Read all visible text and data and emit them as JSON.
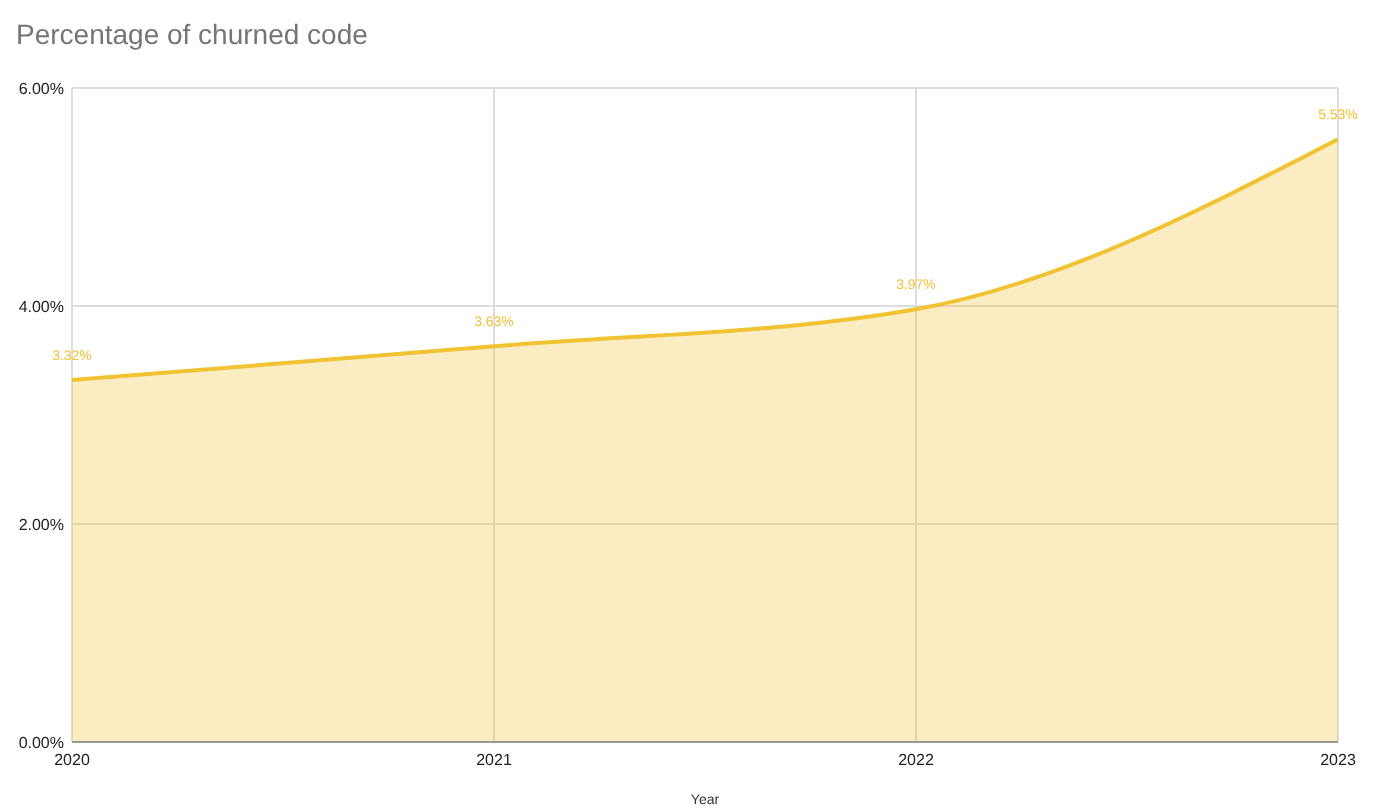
{
  "chart_data": {
    "type": "area",
    "title": "Percentage of churned code",
    "xlabel": "Year",
    "categories": [
      "2020",
      "2021",
      "2022",
      "2023"
    ],
    "series": [
      {
        "color": "#f1c232",
        "values": [
          3.32,
          3.63,
          3.97,
          5.53
        ],
        "value_labels": [
          "3.32%",
          "3.63%",
          "3.97%",
          "5.53%"
        ]
      }
    ],
    "ylim": [
      0,
      6
    ],
    "yticks": [
      {
        "value": 0,
        "label": "0.00%"
      },
      {
        "value": 2,
        "label": "2.00%"
      },
      {
        "value": 4,
        "label": "4.00%"
      },
      {
        "value": 6,
        "label": "6.00%"
      }
    ],
    "grid": true,
    "marker": "none"
  }
}
